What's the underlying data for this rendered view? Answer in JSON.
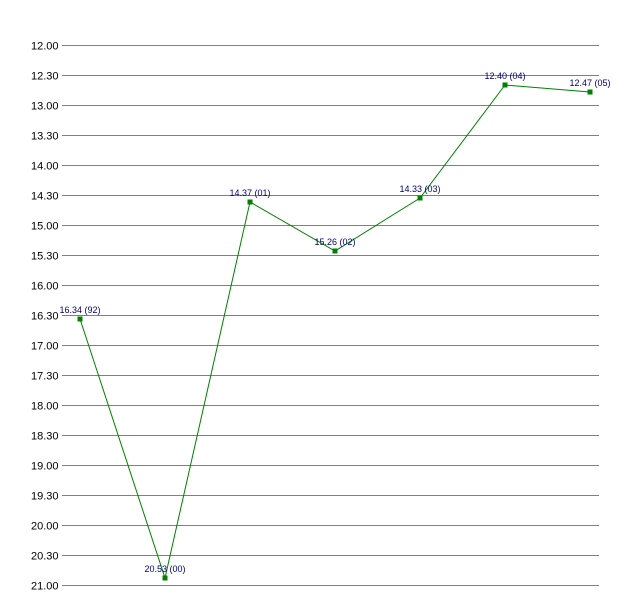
{
  "chart_data": {
    "type": "line",
    "title": "",
    "xlabel": "",
    "ylabel": "",
    "y_inverted": true,
    "ylim": [
      12.0,
      21.0
    ],
    "yticks": [
      "12.00",
      "12.30",
      "13.00",
      "13.30",
      "14.00",
      "14.30",
      "15.00",
      "15.30",
      "16.00",
      "16.30",
      "17.00",
      "17.30",
      "18.00",
      "18.30",
      "19.00",
      "19.30",
      "20.00",
      "20.30",
      "21.00"
    ],
    "grid": true,
    "line_color": "#008000",
    "marker_color": "#008000",
    "label_color": "#00007a",
    "series": [
      {
        "points": [
          {
            "y": 16.34,
            "label": "16.34 (92)"
          },
          {
            "y": 20.53,
            "label": "20.53 (00)"
          },
          {
            "y": 14.37,
            "label": "14.37 (01)"
          },
          {
            "y": 15.26,
            "label": "15.26 (02)"
          },
          {
            "y": 14.33,
            "label": "14.33 (03)"
          },
          {
            "y": 12.4,
            "label": "12.40 (04)"
          },
          {
            "y": 12.47,
            "label": "12.47 (05)"
          }
        ]
      }
    ]
  }
}
